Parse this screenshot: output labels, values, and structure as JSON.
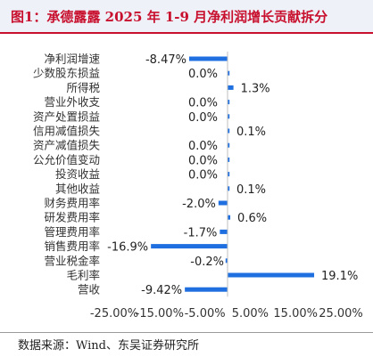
{
  "title": "图1：承德露露 2025 年 1-9 月净利润增长贡献拆分",
  "source": "数据来源：Wind、东吴证券研究所",
  "chart_data": {
    "type": "bar",
    "orientation": "horizontal",
    "bar_color": "#1f6fe0",
    "xlim": [
      -25,
      25
    ],
    "xticks": [
      -25,
      -15,
      -5,
      5,
      15,
      25
    ],
    "xtick_labels": [
      "-25.00%",
      "-15.00%",
      "-5.00%",
      "5.00%",
      "15.00%",
      "25.00%"
    ],
    "grid": false,
    "categories": [
      "净利润增速",
      "少数股东损益",
      "所得税",
      "营业外收支",
      "资产处置损益",
      "信用减值损失",
      "资产减值损失",
      "公允价值变动",
      "投资收益",
      "其他收益",
      "财务费用率",
      "研发费用率",
      "管理费用率",
      "销售费用率",
      "营业税金率",
      "毛利率",
      "营收"
    ],
    "values": [
      -8.47,
      0.0,
      1.3,
      0.0,
      0.0,
      0.1,
      0.0,
      0.0,
      0.0,
      0.1,
      -2.0,
      0.6,
      -1.7,
      -16.9,
      -0.2,
      19.1,
      -9.42
    ],
    "value_labels": [
      "-8.47%",
      "0.0%",
      "1.3%",
      "0.0%",
      "0.0%",
      "0.1%",
      "0.0%",
      "0.0%",
      "0.0%",
      "0.1%",
      "-2.0%",
      "0.6%",
      "-1.7%",
      "-16.9%",
      "-0.2%",
      "19.1%",
      "-9.42%"
    ]
  }
}
